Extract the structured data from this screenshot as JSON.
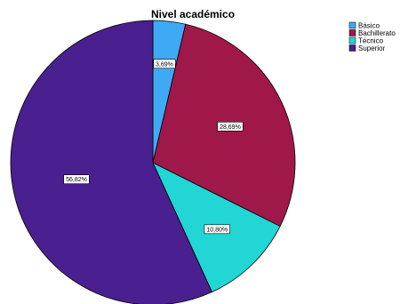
{
  "chart_data": {
    "type": "pie",
    "title": "Nivel académico",
    "categories": [
      "Básico",
      "Bachillerato",
      "Técnico",
      "Superior"
    ],
    "values": [
      3.69,
      28.69,
      10.8,
      56.82
    ],
    "data_labels": [
      "3,69%",
      "28,69%",
      "10,80%",
      "56,82%"
    ],
    "colors": [
      "#3fa9f5",
      "#a0174a",
      "#22d6d6",
      "#4a1f8f"
    ],
    "legend": {
      "position": "top-right",
      "entries": [
        "Básico",
        "Bachillerato",
        "Técnico",
        "Superior"
      ]
    }
  }
}
